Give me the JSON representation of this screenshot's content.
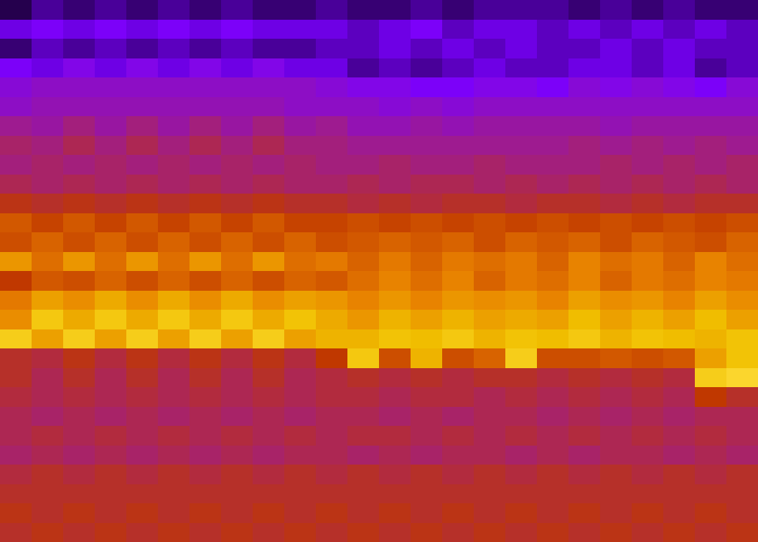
{
  "chart_data": {
    "type": "heatmap",
    "tick_labels": false,
    "grid": false,
    "zlim": [
      0,
      4
    ],
    "colors": [
      "#000000",
      "#7a00ff",
      "#a01c8a",
      "#c03800",
      "#e88000",
      "#f0c000",
      "#ffe040"
    ],
    "cells": [
      [
        0.2,
        0.4,
        0.3,
        0.4,
        0.3,
        0.4,
        0.3,
        0.4,
        0.3,
        0.3,
        0.4,
        0.3,
        0.3,
        0.4,
        0.3,
        0.4,
        0.4,
        0.4,
        0.3,
        0.4,
        0.3,
        0.4,
        0.3,
        0.3
      ],
      [
        0.6,
        0.7,
        0.6,
        0.7,
        0.6,
        0.7,
        0.6,
        0.7,
        0.6,
        0.6,
        0.6,
        0.5,
        0.6,
        0.7,
        0.5,
        0.6,
        0.6,
        0.5,
        0.6,
        0.5,
        0.6,
        0.5,
        0.6,
        0.5
      ],
      [
        0.3,
        0.5,
        0.4,
        0.5,
        0.4,
        0.5,
        0.4,
        0.5,
        0.4,
        0.4,
        0.5,
        0.5,
        0.6,
        0.5,
        0.6,
        0.5,
        0.6,
        0.5,
        0.5,
        0.6,
        0.5,
        0.6,
        0.5,
        0.5
      ],
      [
        0.7,
        0.6,
        0.8,
        0.6,
        0.8,
        0.6,
        0.8,
        0.6,
        0.8,
        0.6,
        0.6,
        0.4,
        0.5,
        0.4,
        0.5,
        0.6,
        0.5,
        0.5,
        0.6,
        0.6,
        0.5,
        0.6,
        0.4,
        0.5
      ],
      [
        0.9,
        1.0,
        1.0,
        1.0,
        1.0,
        1.0,
        1.0,
        1.0,
        1.0,
        1.0,
        0.9,
        0.8,
        0.8,
        0.7,
        0.7,
        0.8,
        0.8,
        0.7,
        0.9,
        0.8,
        0.9,
        0.8,
        0.7,
        0.9
      ],
      [
        1.0,
        1.1,
        1.1,
        1.1,
        1.1,
        1.1,
        1.1,
        1.1,
        1.1,
        1.0,
        1.0,
        1.0,
        0.9,
        1.0,
        0.9,
        1.0,
        1.0,
        1.0,
        1.0,
        1.0,
        1.0,
        1.0,
        1.0,
        1.0
      ],
      [
        1.3,
        1.2,
        1.4,
        1.2,
        1.4,
        1.2,
        1.4,
        1.2,
        1.4,
        1.2,
        1.3,
        1.1,
        1.1,
        1.2,
        1.1,
        1.2,
        1.2,
        1.2,
        1.2,
        1.1,
        1.2,
        1.2,
        1.2,
        1.2
      ],
      [
        1.5,
        1.4,
        1.6,
        1.4,
        1.6,
        1.4,
        1.6,
        1.4,
        1.6,
        1.4,
        1.4,
        1.3,
        1.3,
        1.3,
        1.3,
        1.3,
        1.3,
        1.3,
        1.4,
        1.3,
        1.4,
        1.3,
        1.4,
        1.3
      ],
      [
        1.4,
        1.5,
        1.4,
        1.5,
        1.4,
        1.5,
        1.4,
        1.5,
        1.4,
        1.5,
        1.4,
        1.4,
        1.5,
        1.4,
        1.4,
        1.5,
        1.4,
        1.4,
        1.4,
        1.5,
        1.4,
        1.5,
        1.4,
        1.5
      ],
      [
        1.6,
        1.5,
        1.6,
        1.5,
        1.6,
        1.5,
        1.6,
        1.5,
        1.6,
        1.5,
        1.5,
        1.6,
        1.5,
        1.6,
        1.6,
        1.5,
        1.6,
        1.5,
        1.6,
        1.5,
        1.6,
        1.5,
        1.6,
        1.5
      ],
      [
        1.9,
        1.8,
        1.9,
        1.8,
        1.9,
        1.8,
        1.9,
        1.8,
        1.9,
        1.8,
        1.8,
        1.7,
        1.8,
        1.7,
        1.8,
        1.8,
        1.7,
        1.8,
        1.8,
        1.7,
        1.8,
        1.7,
        1.8,
        1.8
      ],
      [
        2.3,
        2.1,
        2.3,
        2.1,
        2.3,
        2.1,
        2.3,
        2.1,
        2.3,
        2.1,
        2.1,
        2.2,
        2.1,
        2.2,
        2.1,
        2.2,
        2.1,
        2.2,
        2.1,
        2.2,
        2.1,
        2.2,
        2.1,
        2.2
      ],
      [
        2.2,
        2.4,
        2.2,
        2.4,
        2.2,
        2.4,
        2.2,
        2.4,
        2.2,
        2.4,
        2.2,
        2.3,
        2.4,
        2.3,
        2.4,
        2.2,
        2.4,
        2.3,
        2.4,
        2.2,
        2.4,
        2.3,
        2.2,
        2.4
      ],
      [
        2.9,
        2.5,
        2.9,
        2.5,
        2.9,
        2.5,
        2.9,
        2.5,
        2.9,
        2.5,
        2.6,
        2.4,
        2.6,
        2.4,
        2.6,
        2.5,
        2.6,
        2.4,
        2.7,
        2.5,
        2.6,
        2.4,
        2.7,
        2.5
      ],
      [
        2.0,
        2.3,
        2.2,
        2.4,
        2.2,
        2.4,
        2.2,
        2.4,
        2.2,
        2.4,
        2.3,
        2.5,
        2.7,
        2.5,
        2.7,
        2.4,
        2.6,
        2.5,
        2.7,
        2.4,
        2.6,
        2.5,
        2.7,
        2.6
      ],
      [
        2.6,
        3.0,
        2.8,
        3.1,
        2.8,
        3.1,
        2.8,
        3.1,
        2.8,
        3.0,
        2.9,
        2.7,
        2.9,
        2.7,
        2.9,
        2.8,
        2.9,
        2.7,
        3.0,
        2.8,
        2.9,
        2.7,
        3.0,
        2.8
      ],
      [
        2.8,
        3.5,
        3.1,
        3.5,
        3.1,
        3.5,
        3.1,
        3.5,
        3.1,
        3.4,
        3.1,
        2.9,
        3.2,
        3.0,
        3.2,
        3.0,
        3.1,
        3.0,
        3.3,
        3.0,
        3.2,
        3.0,
        3.3,
        3.0
      ],
      [
        3.6,
        3.0,
        3.6,
        3.0,
        3.6,
        3.0,
        3.6,
        3.0,
        3.6,
        3.0,
        3.2,
        3.2,
        3.4,
        3.3,
        3.5,
        3.2,
        3.4,
        3.3,
        3.5,
        3.2,
        3.4,
        3.3,
        3.2,
        3.4
      ],
      [
        1.8,
        1.7,
        1.9,
        1.7,
        1.9,
        1.7,
        1.9,
        1.7,
        1.9,
        1.7,
        2.0,
        3.5,
        2.2,
        3.2,
        2.2,
        2.4,
        3.6,
        2.2,
        2.2,
        2.3,
        2.2,
        2.3,
        3.0,
        3.4
      ],
      [
        1.8,
        1.6,
        1.8,
        1.6,
        1.8,
        1.6,
        1.8,
        1.6,
        1.8,
        1.6,
        1.7,
        1.8,
        1.7,
        1.8,
        1.7,
        1.8,
        1.8,
        1.7,
        1.8,
        1.7,
        1.8,
        1.7,
        3.6,
        3.8
      ],
      [
        1.7,
        1.6,
        1.7,
        1.6,
        1.7,
        1.6,
        1.7,
        1.6,
        1.7,
        1.6,
        1.7,
        1.7,
        1.6,
        1.7,
        1.7,
        1.6,
        1.7,
        1.6,
        1.7,
        1.6,
        1.7,
        1.6,
        2.0,
        1.8
      ],
      [
        1.6,
        1.5,
        1.6,
        1.5,
        1.6,
        1.5,
        1.6,
        1.5,
        1.6,
        1.5,
        1.6,
        1.6,
        1.5,
        1.6,
        1.5,
        1.6,
        1.6,
        1.5,
        1.6,
        1.5,
        1.6,
        1.5,
        1.6,
        1.6
      ],
      [
        1.6,
        1.7,
        1.6,
        1.7,
        1.6,
        1.7,
        1.6,
        1.7,
        1.6,
        1.7,
        1.6,
        1.7,
        1.7,
        1.6,
        1.7,
        1.6,
        1.7,
        1.6,
        1.7,
        1.6,
        1.7,
        1.6,
        1.7,
        1.6
      ],
      [
        1.5,
        1.6,
        1.5,
        1.6,
        1.5,
        1.6,
        1.5,
        1.6,
        1.5,
        1.6,
        1.6,
        1.5,
        1.6,
        1.5,
        1.6,
        1.6,
        1.5,
        1.6,
        1.5,
        1.6,
        1.6,
        1.5,
        1.6,
        1.5
      ],
      [
        1.7,
        1.8,
        1.7,
        1.8,
        1.7,
        1.8,
        1.7,
        1.8,
        1.7,
        1.8,
        1.7,
        1.8,
        1.7,
        1.8,
        1.7,
        1.8,
        1.7,
        1.8,
        1.7,
        1.8,
        1.7,
        1.8,
        1.7,
        1.8
      ],
      [
        1.8,
        1.8,
        1.8,
        1.8,
        1.8,
        1.8,
        1.8,
        1.8,
        1.8,
        1.8,
        1.8,
        1.8,
        1.8,
        1.8,
        1.8,
        1.8,
        1.8,
        1.8,
        1.8,
        1.8,
        1.8,
        1.8,
        1.8,
        1.8
      ],
      [
        1.9,
        1.8,
        1.9,
        1.8,
        1.9,
        1.8,
        1.9,
        1.8,
        1.9,
        1.8,
        1.9,
        1.8,
        1.9,
        1.8,
        1.9,
        1.8,
        1.9,
        1.8,
        1.9,
        1.8,
        1.9,
        1.8,
        1.9,
        1.8
      ],
      [
        1.8,
        1.9,
        1.8,
        1.9,
        1.8,
        1.9,
        1.8,
        1.9,
        1.8,
        1.9,
        1.8,
        1.9,
        1.8,
        1.9,
        1.8,
        1.9,
        1.8,
        1.9,
        1.8,
        1.9,
        1.8,
        1.9,
        1.8,
        1.9
      ]
    ]
  }
}
